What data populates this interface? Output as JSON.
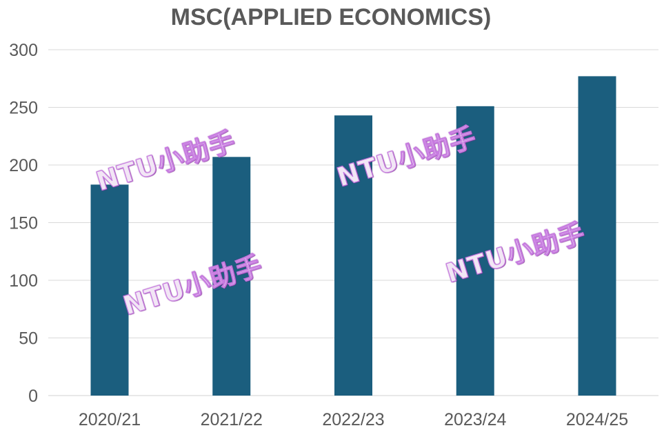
{
  "chart_data": {
    "type": "bar",
    "title": "MSC(APPLIED ECONOMICS)",
    "categories": [
      "2020/21",
      "2021/22",
      "2022/23",
      "2023/24",
      "2024/25"
    ],
    "values": [
      183,
      207,
      243,
      251,
      277
    ],
    "ylim": [
      0,
      300
    ],
    "yticks": [
      "0",
      "50",
      "100",
      "150",
      "200",
      "250",
      "300"
    ],
    "xlabel": "",
    "ylabel": "",
    "grid": true,
    "legend": "none",
    "bar_color": "#1b5e7e"
  },
  "watermark": {
    "text": "NTU小助手"
  }
}
